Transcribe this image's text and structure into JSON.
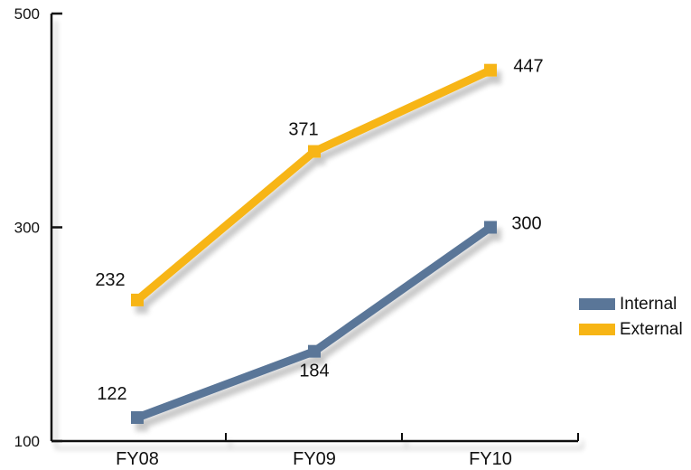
{
  "chart_data": {
    "type": "line",
    "title": "",
    "xlabel": "",
    "ylabel": "",
    "categories": [
      "FY08",
      "FY09",
      "FY10"
    ],
    "y_ticks": [
      "100",
      "300",
      "500"
    ],
    "ylim": [
      100,
      500
    ],
    "grid": false,
    "legend_position": "right",
    "series": [
      {
        "name": "Internal",
        "values": [
          122,
          184,
          300
        ],
        "labels": [
          "122",
          "184",
          "300"
        ],
        "color": "#5a7698"
      },
      {
        "name": "External",
        "values": [
          232,
          371,
          447
        ],
        "labels": [
          "232",
          "371",
          "447"
        ],
        "color": "#f7b515"
      }
    ]
  }
}
